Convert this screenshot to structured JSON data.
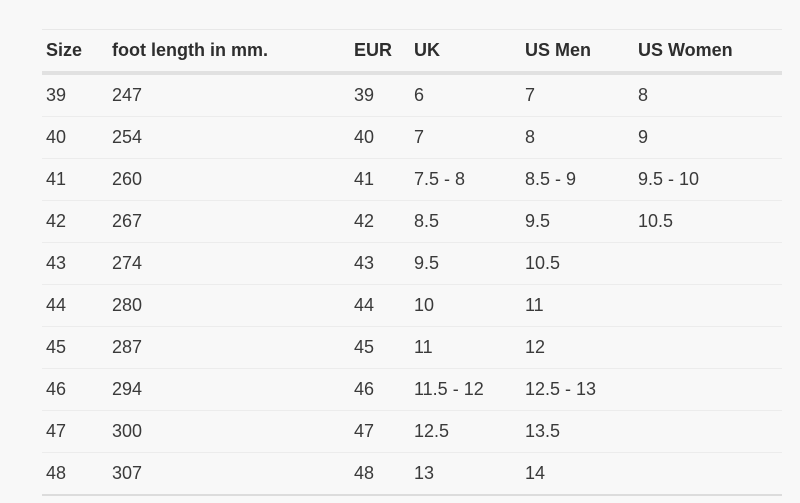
{
  "table": {
    "columns": [
      {
        "key": "size",
        "label": "Size"
      },
      {
        "key": "foot",
        "label": "foot length in mm."
      },
      {
        "key": "eur",
        "label": "EUR"
      },
      {
        "key": "uk",
        "label": "UK"
      },
      {
        "key": "us-men",
        "label": "US Men"
      },
      {
        "key": "us-women",
        "label": "US Women"
      }
    ],
    "rows": [
      [
        "39",
        "247",
        "39",
        "6",
        "7",
        "8"
      ],
      [
        "40",
        "254",
        "40",
        "7",
        "8",
        "9"
      ],
      [
        "41",
        "260",
        "41",
        "7.5 - 8",
        "8.5 - 9",
        "9.5 - 10"
      ],
      [
        "42",
        "267",
        "42",
        "8.5",
        "9.5",
        "10.5"
      ],
      [
        "43",
        "274",
        "43",
        "9.5",
        "10.5",
        ""
      ],
      [
        "44",
        "280",
        "44",
        "10",
        "11",
        ""
      ],
      [
        "45",
        "287",
        "45",
        "11",
        "12",
        ""
      ],
      [
        "46",
        "294",
        "46",
        "11.5 - 12",
        "12.5 - 13",
        ""
      ],
      [
        "47",
        "300",
        "47",
        "12.5",
        "13.5",
        ""
      ],
      [
        "48",
        "307",
        "48",
        "13",
        "14",
        ""
      ]
    ]
  },
  "colors": {
    "page_background": "#f8f8f8",
    "header_text": "#2e2e2e",
    "body_text": "#3a3a3a",
    "header_underline": "#e1e1e1",
    "row_separator": "#ececec",
    "table_bottom_border": "#dcdcdc"
  }
}
